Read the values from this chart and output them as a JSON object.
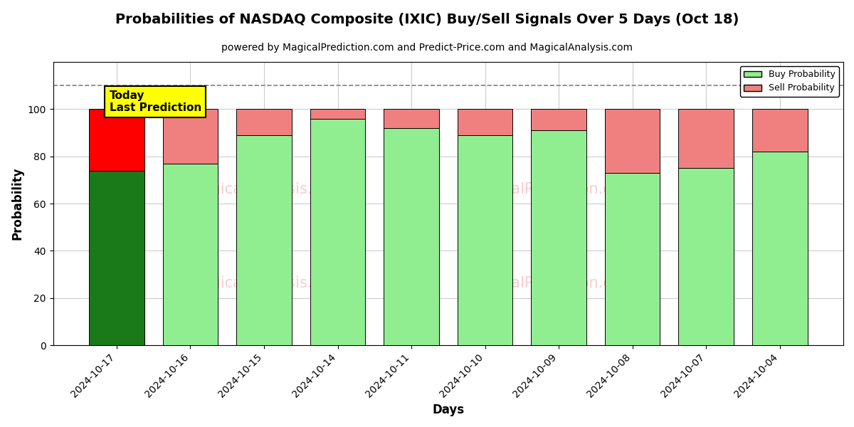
{
  "title": "Probabilities of NASDAQ Composite (IXIC) Buy/Sell Signals Over 5 Days (Oct 18)",
  "subtitle": "powered by MagicalPrediction.com and Predict-Price.com and MagicalAnalysis.com",
  "xlabel": "Days",
  "ylabel": "Probability",
  "categories": [
    "2024-10-17",
    "2024-10-16",
    "2024-10-15",
    "2024-10-14",
    "2024-10-11",
    "2024-10-10",
    "2024-10-09",
    "2024-10-08",
    "2024-10-07",
    "2024-10-04"
  ],
  "buy_values": [
    74,
    77,
    89,
    96,
    92,
    89,
    91,
    73,
    75,
    82
  ],
  "sell_values": [
    26,
    23,
    11,
    4,
    8,
    11,
    9,
    27,
    25,
    18
  ],
  "buy_colors": [
    "#1a7a1a",
    "#90ee90",
    "#90ee90",
    "#90ee90",
    "#90ee90",
    "#90ee90",
    "#90ee90",
    "#90ee90",
    "#90ee90",
    "#90ee90"
  ],
  "sell_colors": [
    "#ff0000",
    "#f08080",
    "#f08080",
    "#f08080",
    "#f08080",
    "#f08080",
    "#f08080",
    "#f08080",
    "#f08080",
    "#f08080"
  ],
  "today_label": "Today\nLast Prediction",
  "today_index": 0,
  "ylim": [
    0,
    120
  ],
  "yticks": [
    0,
    20,
    40,
    60,
    80,
    100
  ],
  "dashed_line_y": 110,
  "legend_buy_color": "#90ee90",
  "legend_sell_color": "#f08080",
  "background_color": "#ffffff",
  "grid_color": "#cccccc",
  "title_fontsize": 14,
  "subtitle_fontsize": 10,
  "axis_label_fontsize": 12,
  "tick_fontsize": 10
}
